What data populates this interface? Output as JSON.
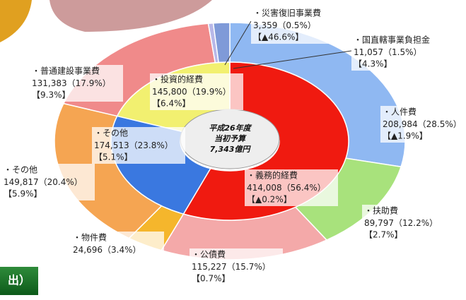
{
  "chart_data": [
    {
      "type": "pie",
      "categories": [
        "・義務的経費",
        "・その他",
        "・投資的経費"
      ],
      "values": [
        414008,
        174513,
        145800
      ],
      "value_labels": [
        "414,008",
        "174,513",
        "145,800"
      ],
      "share_labels": [
        "（56.4%）",
        "（23.8%）",
        "（19.9%）"
      ],
      "change_labels": [
        "【▲0.2%】",
        "【5.1%】",
        "【6.4%】"
      ],
      "colors": [
        "#f01a10",
        "#3a78e0",
        "#f2f070"
      ]
    },
    {
      "type": "pie",
      "categories": [
        "・人件費",
        "・扶助費",
        "・公債費",
        "・物件費",
        "・その他",
        "・普通建設事業費",
        "・災害復旧事業費",
        "・国直轄事業負担金"
      ],
      "values": [
        208984,
        89797,
        115227,
        24696,
        149817,
        131383,
        3359,
        11057
      ],
      "value_labels": [
        "208,984",
        "89,797",
        "115,227",
        "24,696",
        "149,817",
        "131,383",
        "3,359",
        "11,057"
      ],
      "share_labels": [
        "（28.5%）",
        "（12.2%）",
        "（15.7%）",
        "（3.4%）",
        "（20.4%）",
        "（17.9%）",
        "（0.5%）",
        "（1.5%）"
      ],
      "change_labels": [
        "【▲1.9%】",
        "【2.7%】",
        "【0.7%】",
        "",
        "【5.9%】",
        "【9.3%】",
        "【▲46.6%】",
        "【4.3%】"
      ],
      "colors": [
        "#8fb8f2",
        "#a8e27c",
        "#f4a9a9",
        "#f5b62c",
        "#f5a552",
        "#f08a8a",
        "#b8b8e8",
        "#7f9ad8"
      ]
    }
  ],
  "center_text": [
    "平成26年度",
    "当初予算",
    "7,343億円"
  ],
  "footer_tab": "出）"
}
